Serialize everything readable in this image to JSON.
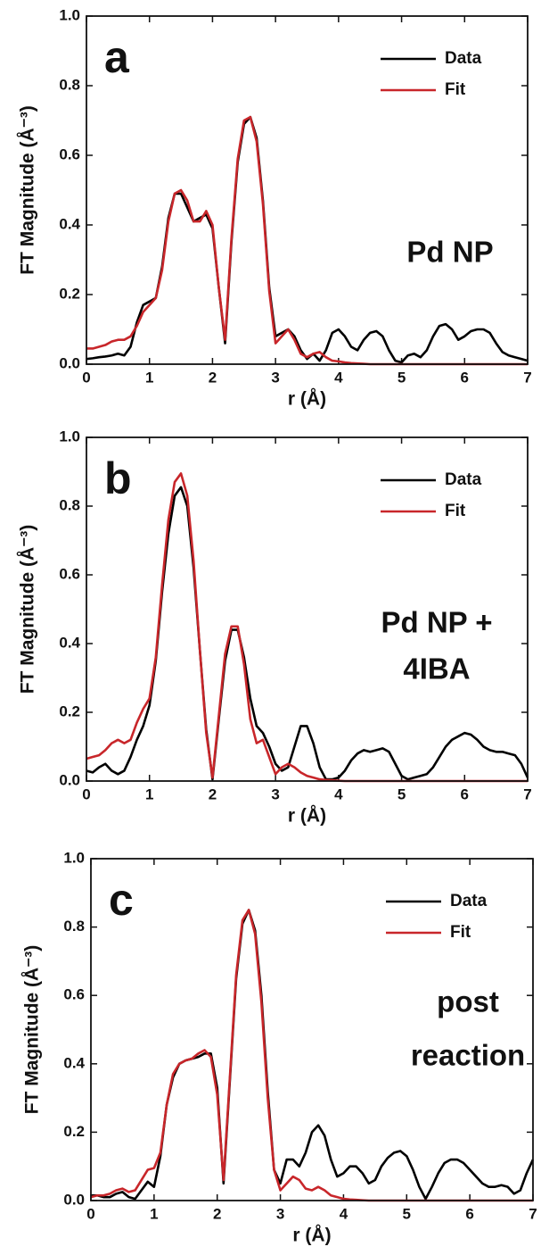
{
  "chart_data": [
    {
      "type": "line",
      "panel_label": "a",
      "annotation": [
        "Pd NP"
      ],
      "x_label": "r (Å)",
      "y_label": "FT Magnitude (Å⁻³)",
      "legend": "upper right",
      "xlim": [
        0,
        7
      ],
      "ylim": [
        0,
        1
      ],
      "xticks": [
        0,
        1,
        2,
        3,
        4,
        5,
        6,
        7
      ],
      "yticks": [
        {
          "value": 0,
          "label": "0.0"
        },
        0.2,
        0.4,
        0.6,
        0.8,
        {
          "value": 1,
          "label": "1.0"
        }
      ],
      "x": [
        0,
        0.1,
        0.2,
        0.3,
        0.4,
        0.5,
        0.6,
        0.7,
        0.8,
        0.9,
        1,
        1.1,
        1.2,
        1.3,
        1.4,
        1.5,
        1.6,
        1.7,
        1.8,
        1.9,
        2,
        2.1,
        2.2,
        2.3,
        2.4,
        2.5,
        2.6,
        2.7,
        2.8,
        2.9,
        3,
        3.1,
        3.2,
        3.3,
        3.4,
        3.5,
        3.6,
        3.7,
        3.8,
        3.9,
        4,
        4.1,
        4.2,
        4.3,
        4.4,
        4.5,
        4.6,
        4.7,
        4.8,
        4.9,
        5,
        5.1,
        5.2,
        5.3,
        5.4,
        5.5,
        5.6,
        5.7,
        5.8,
        5.9,
        6,
        6.1,
        6.2,
        6.3,
        6.4,
        6.5,
        6.6,
        6.7,
        6.8,
        6.9,
        7
      ],
      "series": [
        {
          "name": "Data",
          "color": "#000000",
          "values": [
            0.015,
            0.017,
            0.02,
            0.022,
            0.025,
            0.03,
            0.025,
            0.05,
            0.12,
            0.17,
            0.18,
            0.19,
            0.28,
            0.42,
            0.49,
            0.49,
            0.45,
            0.41,
            0.42,
            0.43,
            0.39,
            0.22,
            0.06,
            0.35,
            0.58,
            0.69,
            0.71,
            0.65,
            0.47,
            0.22,
            0.08,
            0.09,
            0.1,
            0.08,
            0.04,
            0.015,
            0.03,
            0.01,
            0.04,
            0.09,
            0.1,
            0.08,
            0.05,
            0.04,
            0.07,
            0.09,
            0.095,
            0.08,
            0.04,
            0.01,
            0.005,
            0.025,
            0.03,
            0.02,
            0.04,
            0.08,
            0.11,
            0.115,
            0.1,
            0.07,
            0.08,
            0.095,
            0.1,
            0.1,
            0.09,
            0.06,
            0.035,
            0.025,
            0.02,
            0.015,
            0.01
          ]
        },
        {
          "name": "Fit",
          "color": "#c8262a",
          "values": [
            0.045,
            0.045,
            0.05,
            0.055,
            0.065,
            0.07,
            0.07,
            0.08,
            0.11,
            0.15,
            0.17,
            0.19,
            0.27,
            0.41,
            0.49,
            0.5,
            0.47,
            0.41,
            0.41,
            0.44,
            0.4,
            0.22,
            0.07,
            0.36,
            0.59,
            0.7,
            0.71,
            0.64,
            0.46,
            0.21,
            0.06,
            0.08,
            0.1,
            0.07,
            0.03,
            0.02,
            0.03,
            0.035,
            0.02,
            0.01,
            0.008,
            0.005,
            0.003,
            0.002,
            0.001,
            0,
            0,
            0,
            0,
            0,
            0,
            0,
            0,
            0,
            0,
            0,
            0,
            0,
            0,
            0,
            0,
            0,
            0,
            0,
            0,
            0,
            0,
            0,
            0,
            0,
            0
          ]
        }
      ]
    },
    {
      "type": "line",
      "panel_label": "b",
      "annotation": [
        "Pd NP +",
        "4IBA"
      ],
      "x_label": "r (Å)",
      "y_label": "FT Magnitude (Å⁻³)",
      "legend": "upper right",
      "xlim": [
        0,
        7
      ],
      "ylim": [
        0,
        1
      ],
      "xticks": [
        0,
        1,
        2,
        3,
        4,
        5,
        6,
        7
      ],
      "yticks": [
        {
          "value": 0,
          "label": "0.0"
        },
        0.2,
        0.4,
        0.6,
        0.8,
        {
          "value": 1,
          "label": "1.0"
        }
      ],
      "x": [
        0,
        0.1,
        0.2,
        0.3,
        0.4,
        0.5,
        0.6,
        0.7,
        0.8,
        0.9,
        1,
        1.1,
        1.2,
        1.3,
        1.4,
        1.5,
        1.6,
        1.7,
        1.8,
        1.9,
        2,
        2.1,
        2.2,
        2.3,
        2.4,
        2.5,
        2.6,
        2.7,
        2.8,
        2.9,
        3,
        3.1,
        3.2,
        3.3,
        3.4,
        3.5,
        3.6,
        3.7,
        3.8,
        3.9,
        4,
        4.1,
        4.2,
        4.3,
        4.4,
        4.5,
        4.6,
        4.7,
        4.8,
        4.9,
        5,
        5.1,
        5.2,
        5.3,
        5.4,
        5.5,
        5.6,
        5.7,
        5.8,
        5.9,
        6,
        6.1,
        6.2,
        6.3,
        6.4,
        6.5,
        6.6,
        6.7,
        6.8,
        6.9,
        7
      ],
      "series": [
        {
          "name": "Data",
          "color": "#000000",
          "values": [
            0.03,
            0.025,
            0.04,
            0.05,
            0.03,
            0.02,
            0.03,
            0.07,
            0.12,
            0.16,
            0.22,
            0.35,
            0.55,
            0.72,
            0.83,
            0.855,
            0.8,
            0.62,
            0.38,
            0.15,
            0.005,
            0.18,
            0.35,
            0.44,
            0.44,
            0.36,
            0.24,
            0.16,
            0.14,
            0.1,
            0.05,
            0.03,
            0.04,
            0.1,
            0.16,
            0.16,
            0.11,
            0.04,
            0.005,
            0.005,
            0.01,
            0.03,
            0.06,
            0.08,
            0.09,
            0.085,
            0.09,
            0.095,
            0.085,
            0.05,
            0.015,
            0.005,
            0.01,
            0.015,
            0.02,
            0.04,
            0.07,
            0.1,
            0.12,
            0.13,
            0.14,
            0.135,
            0.12,
            0.1,
            0.09,
            0.085,
            0.085,
            0.08,
            0.075,
            0.05,
            0.01
          ]
        },
        {
          "name": "Fit",
          "color": "#c8262a",
          "values": [
            0.065,
            0.07,
            0.075,
            0.09,
            0.11,
            0.12,
            0.11,
            0.12,
            0.17,
            0.21,
            0.24,
            0.36,
            0.57,
            0.76,
            0.87,
            0.895,
            0.83,
            0.64,
            0.38,
            0.14,
            0.01,
            0.19,
            0.37,
            0.45,
            0.45,
            0.34,
            0.18,
            0.11,
            0.12,
            0.07,
            0.02,
            0.04,
            0.05,
            0.04,
            0.025,
            0.015,
            0.01,
            0.005,
            0.003,
            0.002,
            0.001,
            0,
            0,
            0,
            0,
            0,
            0,
            0,
            0,
            0,
            0,
            0,
            0,
            0,
            0,
            0,
            0,
            0,
            0,
            0,
            0,
            0,
            0,
            0,
            0,
            0,
            0,
            0,
            0,
            0,
            0
          ]
        }
      ]
    },
    {
      "type": "line",
      "panel_label": "c",
      "annotation": [
        "post",
        "reaction"
      ],
      "x_label": "r (Å)",
      "y_label": "FT Magnitude (Å⁻³)",
      "legend": "upper right",
      "xlim": [
        0,
        7
      ],
      "ylim": [
        0,
        1
      ],
      "xticks": [
        0,
        1,
        2,
        3,
        4,
        5,
        6,
        7
      ],
      "yticks": [
        {
          "value": 0,
          "label": "0.0"
        },
        0.2,
        0.4,
        0.6,
        0.8,
        {
          "value": 1,
          "label": "1.0"
        }
      ],
      "x": [
        0,
        0.1,
        0.2,
        0.3,
        0.4,
        0.5,
        0.6,
        0.7,
        0.8,
        0.9,
        1,
        1.1,
        1.2,
        1.3,
        1.4,
        1.5,
        1.6,
        1.7,
        1.8,
        1.9,
        2,
        2.1,
        2.2,
        2.3,
        2.4,
        2.5,
        2.6,
        2.7,
        2.8,
        2.9,
        3,
        3.1,
        3.2,
        3.3,
        3.4,
        3.5,
        3.6,
        3.7,
        3.8,
        3.9,
        4,
        4.1,
        4.2,
        4.3,
        4.4,
        4.5,
        4.6,
        4.7,
        4.8,
        4.9,
        5,
        5.1,
        5.2,
        5.3,
        5.4,
        5.5,
        5.6,
        5.7,
        5.8,
        5.9,
        6,
        6.1,
        6.2,
        6.3,
        6.4,
        6.5,
        6.6,
        6.7,
        6.8,
        6.9,
        7
      ],
      "series": [
        {
          "name": "Data",
          "color": "#000000",
          "values": [
            0.015,
            0.015,
            0.01,
            0.01,
            0.02,
            0.025,
            0.01,
            0.005,
            0.03,
            0.055,
            0.04,
            0.13,
            0.28,
            0.36,
            0.4,
            0.41,
            0.415,
            0.42,
            0.43,
            0.43,
            0.33,
            0.05,
            0.35,
            0.65,
            0.81,
            0.85,
            0.79,
            0.6,
            0.32,
            0.09,
            0.05,
            0.12,
            0.12,
            0.1,
            0.14,
            0.2,
            0.22,
            0.19,
            0.12,
            0.07,
            0.08,
            0.1,
            0.1,
            0.08,
            0.05,
            0.06,
            0.1,
            0.125,
            0.14,
            0.145,
            0.13,
            0.09,
            0.04,
            0.005,
            0.04,
            0.08,
            0.11,
            0.12,
            0.12,
            0.11,
            0.09,
            0.07,
            0.05,
            0.04,
            0.04,
            0.045,
            0.04,
            0.02,
            0.03,
            0.08,
            0.12
          ]
        },
        {
          "name": "Fit",
          "color": "#c8262a",
          "values": [
            0.01,
            0.015,
            0.015,
            0.02,
            0.03,
            0.035,
            0.025,
            0.03,
            0.06,
            0.09,
            0.095,
            0.14,
            0.28,
            0.37,
            0.4,
            0.41,
            0.415,
            0.43,
            0.44,
            0.42,
            0.31,
            0.06,
            0.36,
            0.66,
            0.82,
            0.85,
            0.78,
            0.58,
            0.3,
            0.09,
            0.03,
            0.05,
            0.07,
            0.06,
            0.035,
            0.03,
            0.04,
            0.03,
            0.015,
            0.01,
            0.005,
            0.003,
            0.002,
            0.001,
            0,
            0,
            0,
            0,
            0,
            0,
            0,
            0,
            0,
            0,
            0,
            0,
            0,
            0,
            0,
            0,
            0,
            0,
            0,
            0,
            0,
            0,
            0,
            0,
            0,
            0,
            0
          ]
        }
      ]
    }
  ]
}
